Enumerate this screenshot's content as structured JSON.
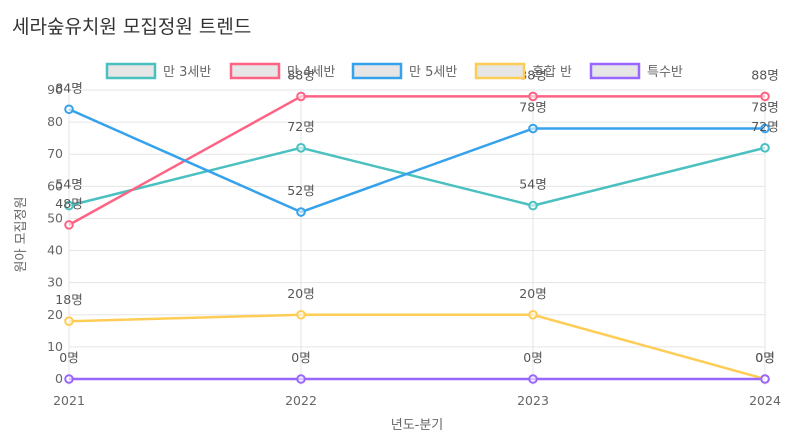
{
  "chart_data": {
    "type": "line",
    "title": "세라숲유치원 모집정원 트렌드",
    "xlabel": "년도-분기",
    "ylabel": "원아 모집정원",
    "categories": [
      "2021",
      "2022",
      "2023",
      "2024"
    ],
    "ylim": [
      0,
      90
    ],
    "yticks": [
      0,
      10,
      20,
      30,
      40,
      50,
      60,
      70,
      80,
      90
    ],
    "grid": true,
    "legend_position": "top",
    "value_suffix": "명",
    "series": [
      {
        "name": "만 3세반",
        "values": [
          54,
          72,
          54,
          72
        ],
        "color": "#4bc0c0"
      },
      {
        "name": "만 4세반",
        "values": [
          48,
          88,
          88,
          88
        ],
        "color": "#ff6384"
      },
      {
        "name": "만 5세반",
        "values": [
          84,
          52,
          78,
          78
        ],
        "color": "#36a2eb"
      },
      {
        "name": "혼합 반",
        "values": [
          18,
          20,
          20,
          0
        ],
        "color": "#ffcd56"
      },
      {
        "name": "특수반",
        "values": [
          0,
          0,
          0,
          0
        ],
        "color": "#9966ff"
      }
    ]
  }
}
